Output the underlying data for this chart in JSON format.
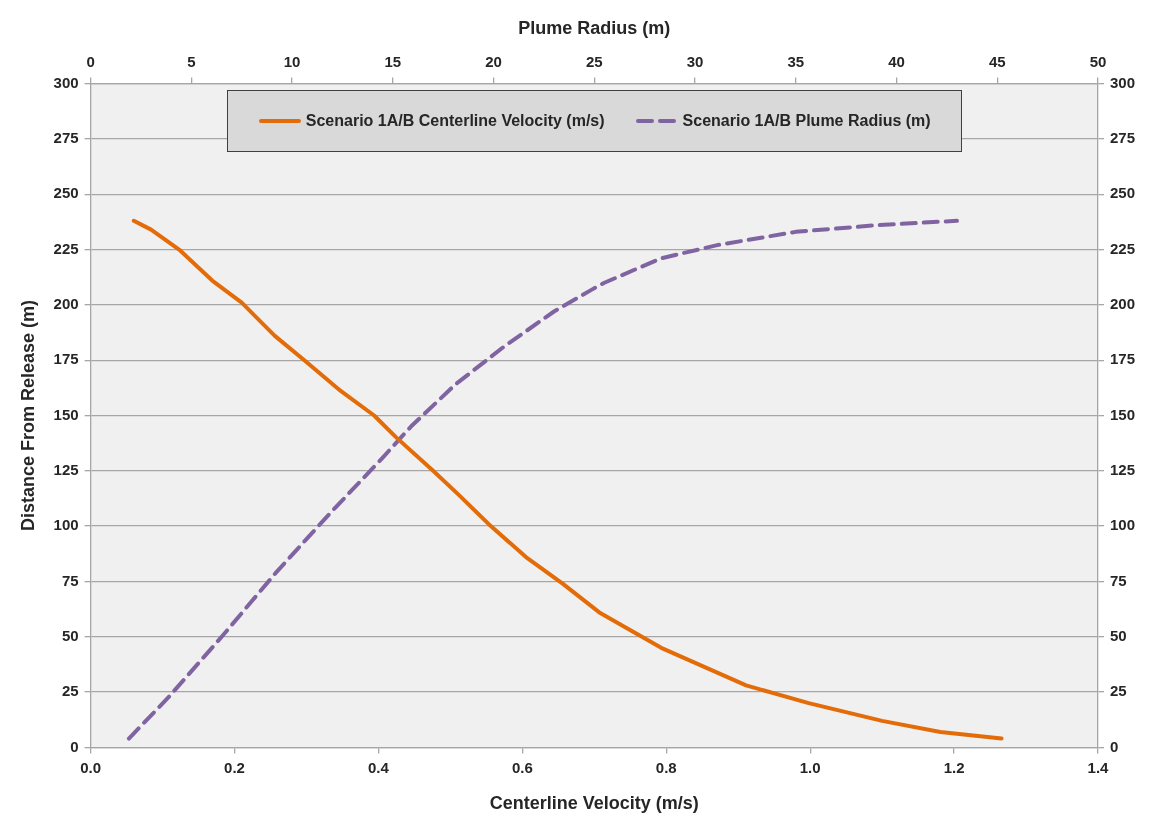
{
  "chart_data": {
    "type": "line",
    "xlabel": "Centerline Velocity (m/s)",
    "x2label": "Plume Radius (m)",
    "ylabel": "Distance From Release (m)",
    "xlim": [
      0,
      1.4
    ],
    "xticks": [
      {
        "value": 0,
        "label": "0.0"
      },
      {
        "value": 0.2,
        "label": "0.2"
      },
      {
        "value": 0.4,
        "label": "0.4"
      },
      {
        "value": 0.6,
        "label": "0.6"
      },
      {
        "value": 0.8,
        "label": "0.8"
      },
      {
        "value": 1,
        "label": "1.0"
      },
      {
        "value": 1.2,
        "label": "1.2"
      },
      {
        "value": 1.4,
        "label": "1.4"
      }
    ],
    "x2lim": [
      0,
      50
    ],
    "x2ticks": [
      0,
      5,
      10,
      15,
      20,
      25,
      30,
      35,
      40,
      45,
      50
    ],
    "ylim": [
      0,
      300
    ],
    "yticks": [
      0,
      25,
      50,
      75,
      100,
      125,
      150,
      175,
      200,
      225,
      250,
      275,
      300
    ],
    "y2lim": [
      0,
      300
    ],
    "y2ticks": [
      0,
      25,
      50,
      75,
      100,
      125,
      150,
      175,
      200,
      225,
      250,
      275,
      300
    ],
    "grid": "y",
    "legend": "top",
    "marker": "none",
    "series": [
      {
        "name": "Scenario 1A/B Centerline Velocity (m/s)",
        "color": "#e36c09",
        "line_style": "solid",
        "x": [
          0.06,
          0.084,
          0.123,
          0.169,
          0.21,
          0.256,
          0.297,
          0.348,
          0.394,
          0.425,
          0.476,
          0.512,
          0.553,
          0.605,
          0.656,
          0.707,
          0.793,
          0.911,
          0.998,
          1.1,
          1.181,
          1.266
        ],
        "values": [
          238,
          234,
          225,
          211,
          201,
          186,
          175,
          161,
          150,
          140,
          125,
          114,
          101,
          86,
          74,
          61,
          45,
          28,
          20,
          12,
          7,
          4
        ]
      },
      {
        "name": "Scenario 1A/B Plume Radius (m)",
        "color": "#8064a2",
        "line_style": "dashed",
        "axis": "x2",
        "x": [
          1.9,
          3.9,
          6.6,
          9.2,
          11.8,
          14.5,
          15.9,
          18.1,
          20.5,
          23.0,
          24.9,
          25.5,
          28.3,
          31.1,
          35.0,
          39.0,
          43.0
        ],
        "values": [
          4,
          23,
          51,
          79,
          105,
          131,
          145,
          164,
          181,
          197,
          207,
          210,
          221,
          227,
          233,
          236,
          238
        ]
      }
    ]
  }
}
